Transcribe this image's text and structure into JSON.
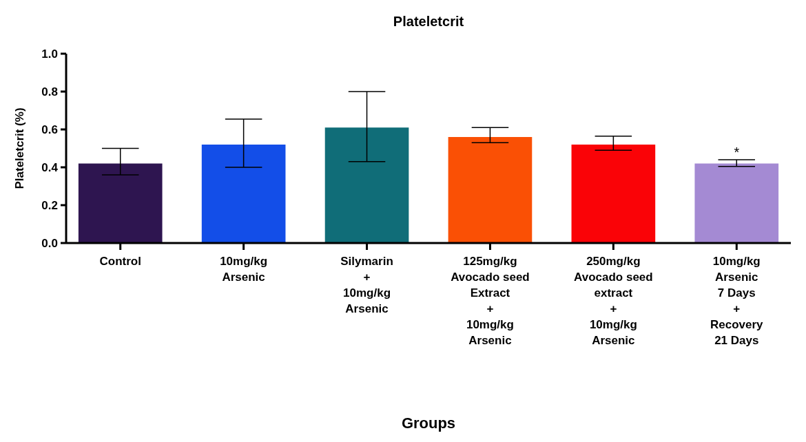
{
  "chart_data": {
    "type": "bar",
    "title": "Plateletcrit",
    "xlabel": "Groups",
    "ylabel": "Plateletcrit  (%)",
    "categories": [
      "Control",
      "10mg/kg\nArsenic",
      "Silymarin\n+\n10mg/kg\nArsenic",
      "125mg/kg\nAvocado seed\nExtract\n+\n10mg/kg\nArsenic",
      "250mg/kg\nAvocado seed\nextract\n+\n10mg/kg\nArsenic",
      "10mg/kg\nArsenic\n7 Days\n+\nRecovery\n21 Days"
    ],
    "values": [
      0.42,
      0.52,
      0.61,
      0.56,
      0.52,
      0.42
    ],
    "colors": [
      "#2e1550",
      "#134ee8",
      "#106d78",
      "#fa5005",
      "#fa0307",
      "#a48ad3"
    ],
    "errors": [
      [
        0.36,
        0.5
      ],
      [
        0.4,
        0.655
      ],
      [
        0.43,
        0.8
      ],
      [
        0.53,
        0.61
      ],
      [
        0.49,
        0.565
      ],
      [
        0.405,
        0.44
      ]
    ],
    "annotations": [
      {
        "text": "*",
        "x": "10mg/kg\nArsenic\n7 Days\n+\nRecovery\n21 Days",
        "y": 0.44
      }
    ],
    "ylim": [
      0,
      1.0
    ],
    "yticks": [
      {
        "value": 0,
        "label": "0.0"
      },
      0.2,
      0.4,
      0.6,
      0.8,
      {
        "value": 1,
        "label": "1.0"
      }
    ],
    "grid": false
  }
}
